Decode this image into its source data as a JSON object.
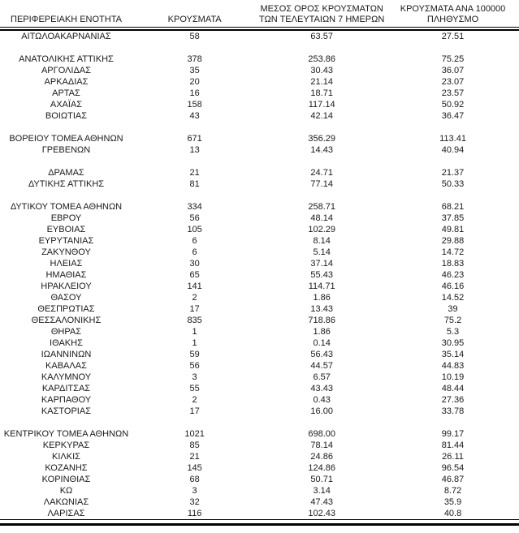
{
  "table": {
    "headers": [
      {
        "line1": "",
        "line2": "ΠΕΡΙΦΕΡΕΙΑΚΗ ΕΝΟΤΗΤΑ"
      },
      {
        "line1": "",
        "line2": "ΚΡΟΥΣΜΑΤΑ"
      },
      {
        "line1": "ΜΕΣΟΣ ΟΡΟΣ ΚΡΟΥΣΜΑΤΩΝ",
        "line2": "ΤΩΝ ΤΕΛΕΥΤΑΙΩΝ 7 ΗΜΕΡΩΝ"
      },
      {
        "line1": "ΚΡΟΥΣΜΑΤΑ ΑΝΑ 100000",
        "line2": "ΠΛΗΘΥΣΜΟ"
      }
    ],
    "rows": [
      [
        "ΑΙΤΩΛΟΑΚΑΡΝΑΝΙΑΣ",
        "58",
        "63.57",
        "27.51"
      ],
      null,
      [
        "ΑΝΑΤΟΛΙΚΗΣ ΑΤΤΙΚΗΣ",
        "378",
        "253.86",
        "75.25"
      ],
      [
        "ΑΡΓΟΛΙΔΑΣ",
        "35",
        "30.43",
        "36.07"
      ],
      [
        "ΑΡΚΑΔΙΑΣ",
        "20",
        "21.14",
        "23.07"
      ],
      [
        "ΑΡΤΑΣ",
        "16",
        "18.71",
        "23.57"
      ],
      [
        "ΑΧΑΪΑΣ",
        "158",
        "117.14",
        "50.92"
      ],
      [
        "ΒΟΙΩΤΙΑΣ",
        "43",
        "42.14",
        "36.47"
      ],
      null,
      [
        "ΒΟΡΕΙΟΥ ΤΟΜΕΑ ΑΘΗΝΩΝ",
        "671",
        "356.29",
        "113.41"
      ],
      [
        "ΓΡΕΒΕΝΩΝ",
        "13",
        "14.43",
        "40.94"
      ],
      null,
      [
        "ΔΡΑΜΑΣ",
        "21",
        "24.71",
        "21.37"
      ],
      [
        "ΔΥΤΙΚΗΣ ΑΤΤΙΚΗΣ",
        "81",
        "77.14",
        "50.33"
      ],
      null,
      [
        "ΔΥΤΙΚΟΥ ΤΟΜΕΑ ΑΘΗΝΩΝ",
        "334",
        "258.71",
        "68.21"
      ],
      [
        "ΕΒΡΟΥ",
        "56",
        "48.14",
        "37.85"
      ],
      [
        "ΕΥΒΟΙΑΣ",
        "105",
        "102.29",
        "49.81"
      ],
      [
        "ΕΥΡΥΤΑΝΙΑΣ",
        "6",
        "8.14",
        "29.88"
      ],
      [
        "ΖΑΚΥΝΘΟΥ",
        "6",
        "5.14",
        "14.72"
      ],
      [
        "ΗΛΕΙΑΣ",
        "30",
        "37.14",
        "18.83"
      ],
      [
        "ΗΜΑΘΙΑΣ",
        "65",
        "55.43",
        "46.23"
      ],
      [
        "ΗΡΑΚΛΕΙΟΥ",
        "141",
        "114.71",
        "46.16"
      ],
      [
        "ΘΑΣΟΥ",
        "2",
        "1.86",
        "14.52"
      ],
      [
        "ΘΕΣΠΡΩΤΙΑΣ",
        "17",
        "13.43",
        "39"
      ],
      [
        "ΘΕΣΣΑΛΟΝΙΚΗΣ",
        "835",
        "718.86",
        "75.2"
      ],
      [
        "ΘΗΡΑΣ",
        "1",
        "1.86",
        "5.3"
      ],
      [
        "ΙΘΑΚΗΣ",
        "1",
        "0.14",
        "30.95"
      ],
      [
        "ΙΩΑΝΝΙΝΩΝ",
        "59",
        "56.43",
        "35.14"
      ],
      [
        "ΚΑΒΑΛΑΣ",
        "56",
        "44.57",
        "44.83"
      ],
      [
        "ΚΑΛΥΜΝΟΥ",
        "3",
        "6.57",
        "10.19"
      ],
      [
        "ΚΑΡΔΙΤΣΑΣ",
        "55",
        "43.43",
        "48.44"
      ],
      [
        "ΚΑΡΠΑΘΟΥ",
        "2",
        "0.43",
        "27.36"
      ],
      [
        "ΚΑΣΤΟΡΙΑΣ",
        "17",
        "16.00",
        "33.78"
      ],
      null,
      [
        "ΚΕΝΤΡΙΚΟΥ ΤΟΜΕΑ ΑΘΗΝΩΝ",
        "1021",
        "698.00",
        "99.17"
      ],
      [
        "ΚΕΡΚΥΡΑΣ",
        "85",
        "78.14",
        "81.44"
      ],
      [
        "ΚΙΛΚΙΣ",
        "21",
        "24.86",
        "26.11"
      ],
      [
        "ΚΟΖΑΝΗΣ",
        "145",
        "124.86",
        "96.54"
      ],
      [
        "ΚΟΡΙΝΘΙΑΣ",
        "68",
        "50.71",
        "46.87"
      ],
      [
        "ΚΩ",
        "3",
        "3.14",
        "8.72"
      ],
      [
        "ΛΑΚΩΝΙΑΣ",
        "32",
        "47.43",
        "35.9"
      ],
      [
        "ΛΑΡΙΣΑΣ",
        "116",
        "102.43",
        "40.8"
      ]
    ],
    "cell_names": [
      "region-name",
      "cases-value",
      "avg7-value",
      "per100k-value"
    ],
    "text_color": "#1a1a1a",
    "rule_color": "#000000"
  }
}
